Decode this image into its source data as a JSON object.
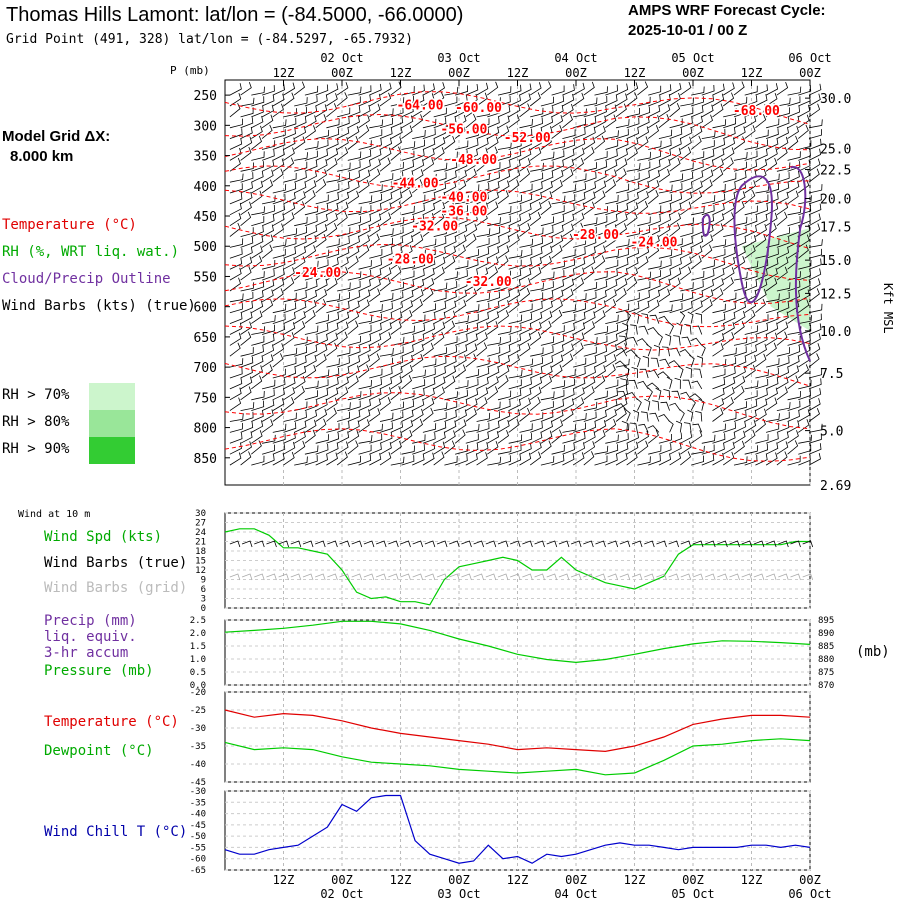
{
  "header": {
    "title": "Thomas Hills Lamont:  lat/lon = (-84.5000, -66.0000)",
    "grid_point": "Grid Point (491, 328) lat/lon = (-84.5297, -65.7932)",
    "cycle_line1": "AMPS WRF Forecast Cycle:",
    "cycle_line2": "2025-10-01 / 00  Z"
  },
  "side": {
    "model_grid_line1": "Model Grid ΔX:",
    "model_grid_line2": "8.000 km",
    "legend_temperature": "Temperature (°C)",
    "legend_rh": "RH (%, WRT liq. wat.)",
    "legend_cloud": "Cloud/Precip Outline",
    "legend_barbs": "Wind Barbs (kts) (true)",
    "rh_70": "RH > 70%",
    "rh_80": "RH > 80%",
    "rh_90": "RH > 90%"
  },
  "panel2_labels": {
    "wind_at_10m": "Wind at 10 m",
    "wind_spd": "Wind Spd (kts)",
    "wind_barbs_true": "Wind Barbs (true)",
    "wind_barbs_grid": "Wind Barbs (grid)"
  },
  "panel3_labels": {
    "precip": "Precip (mm)",
    "liq": "liq. equiv.",
    "accum": "3-hr accum",
    "pressure": "Pressure (mb)",
    "right_unit": "(mb)"
  },
  "panel4_labels": {
    "temperature": "Temperature (°C)",
    "dewpoint": "Dewpoint (°C)"
  },
  "panel5_labels": {
    "wind_chill": "Wind Chill T (°C)"
  },
  "colors": {
    "temperature": "#ff0000",
    "rh": "#00bb00",
    "cloud": "#7030a0",
    "wind_chill": "#0000cc",
    "rh70": "#ccf5cc",
    "rh80": "#99e699",
    "rh90": "#33cc33"
  },
  "chart_data": [
    {
      "type": "heatmap",
      "name": "time-height cross section",
      "y_axis_label": "P (mb)",
      "y_right_label": "Kft MSL",
      "pressure_ticks": [
        "250",
        "300",
        "350",
        "400",
        "450",
        "500",
        "550",
        "600",
        "650",
        "700",
        "750",
        "800",
        "850"
      ],
      "height_ticks": [
        {
          "label": "30.0",
          "p": 255
        },
        {
          "label": "25.0",
          "p": 338
        },
        {
          "label": "22.5",
          "p": 373
        },
        {
          "label": "20.0",
          "p": 421
        },
        {
          "label": "17.5",
          "p": 467
        },
        {
          "label": "15.0",
          "p": 523
        },
        {
          "label": "12.5",
          "p": 578
        },
        {
          "label": "10.0",
          "p": 640
        },
        {
          "label": "7.5",
          "p": 710
        },
        {
          "label": "5.0",
          "p": 805
        },
        {
          "label": "2.69",
          "p": 895
        }
      ],
      "time_top": [
        {
          "hour": 12,
          "l1": "",
          "l2": "12Z"
        },
        {
          "hour": 24,
          "l1": "02 Oct",
          "l2": "00Z"
        },
        {
          "hour": 36,
          "l1": "",
          "l2": "12Z"
        },
        {
          "hour": 48,
          "l1": "03 Oct",
          "l2": "00Z"
        },
        {
          "hour": 60,
          "l1": "",
          "l2": "12Z"
        },
        {
          "hour": 72,
          "l1": "04 Oct",
          "l2": "00Z"
        },
        {
          "hour": 84,
          "l1": "",
          "l2": "12Z"
        },
        {
          "hour": 96,
          "l1": "05 Oct",
          "l2": "00Z"
        },
        {
          "hour": 108,
          "l1": "",
          "l2": "12Z"
        },
        {
          "hour": 120,
          "l1": "06 Oct",
          "l2": "00Z"
        }
      ],
      "temperature_labels": [
        {
          "label": "-64.00",
          "hour": 40,
          "p": 268
        },
        {
          "label": "-60.00",
          "hour": 52,
          "p": 272
        },
        {
          "label": "-68.00",
          "hour": 109,
          "p": 277
        },
        {
          "label": "-56.00",
          "hour": 49,
          "p": 308
        },
        {
          "label": "-52.00",
          "hour": 62,
          "p": 322
        },
        {
          "label": "-48.00",
          "hour": 51,
          "p": 358
        },
        {
          "label": "-44.00",
          "hour": 39,
          "p": 397
        },
        {
          "label": "-40.00",
          "hour": 49,
          "p": 420
        },
        {
          "label": "-36.00",
          "hour": 49,
          "p": 443
        },
        {
          "label": "-32.00",
          "hour": 43,
          "p": 468
        },
        {
          "label": "-28.00",
          "hour": 76,
          "p": 482
        },
        {
          "label": "-24.00",
          "hour": 88,
          "p": 495
        },
        {
          "label": "-28.00",
          "hour": 38,
          "p": 523
        },
        {
          "label": "-24.00",
          "hour": 19,
          "p": 545
        },
        {
          "label": "-32.00",
          "hour": 54,
          "p": 560
        }
      ]
    },
    {
      "type": "line",
      "name": "Wind Spd (kts)",
      "y_ticks": [
        "30",
        "27",
        "24",
        "21",
        "18",
        "15",
        "12",
        "9",
        "6",
        "3",
        "0"
      ],
      "ylim": [
        0,
        30
      ],
      "x_hours": [
        0,
        3,
        6,
        9,
        12,
        15,
        18,
        21,
        24,
        27,
        30,
        33,
        36,
        39,
        42,
        45,
        48,
        51,
        54,
        57,
        60,
        63,
        66,
        69,
        72,
        75,
        78,
        81,
        84,
        87,
        90,
        93,
        96,
        99,
        102,
        105,
        108,
        111,
        114,
        117,
        120
      ],
      "values": [
        24,
        25,
        25,
        23,
        19,
        19,
        18,
        17,
        12,
        5,
        3,
        3.5,
        2,
        2,
        1,
        9,
        13,
        14,
        15,
        16,
        15,
        12,
        12,
        16,
        12,
        10,
        8,
        7,
        6,
        8,
        10,
        17,
        20,
        20,
        20,
        20,
        20,
        20,
        20,
        21,
        21
      ]
    },
    {
      "type": "line",
      "name": "Pressure (mb)",
      "y_ticks_left": [
        "2.5",
        "2.0",
        "1.5",
        "1.0",
        "0.5",
        "0.0"
      ],
      "y_ticks_right": [
        "895",
        "890",
        "885",
        "880",
        "875",
        "870"
      ],
      "ylim_right": [
        870,
        895
      ],
      "x_hours": [
        0,
        6,
        12,
        18,
        24,
        30,
        36,
        42,
        48,
        54,
        60,
        66,
        72,
        78,
        84,
        90,
        96,
        102,
        108,
        114,
        120
      ],
      "values": [
        890.3,
        891,
        891.8,
        893,
        894.5,
        894.5,
        893.5,
        891,
        887.7,
        885,
        881.8,
        879.8,
        878.7,
        879.8,
        881.8,
        884,
        885.8,
        887,
        886.8,
        886.3,
        885.6
      ]
    },
    {
      "type": "line",
      "name": "Temperature / Dewpoint (°C)",
      "y_ticks": [
        "-20",
        "-25",
        "-30",
        "-35",
        "-40",
        "-45"
      ],
      "ylim": [
        -45,
        -20
      ],
      "x_hours": [
        0,
        6,
        12,
        18,
        24,
        30,
        36,
        42,
        48,
        54,
        60,
        66,
        72,
        78,
        84,
        90,
        96,
        102,
        108,
        114,
        120
      ],
      "series": [
        {
          "name": "Temperature",
          "values": [
            -25,
            -27,
            -26,
            -26.5,
            -28,
            -30,
            -31.5,
            -32.5,
            -33.5,
            -34.5,
            -36,
            -35.5,
            -36,
            -36.5,
            -35,
            -32.5,
            -29,
            -27.5,
            -26.5,
            -26.5,
            -27
          ]
        },
        {
          "name": "Dewpoint",
          "values": [
            -34,
            -36,
            -35.5,
            -36,
            -38,
            -39.5,
            -40,
            -40.5,
            -41.5,
            -42,
            -42.5,
            -42,
            -41.5,
            -43,
            -42.5,
            -39,
            -35,
            -34.5,
            -33.5,
            -33,
            -33.5
          ]
        }
      ]
    },
    {
      "type": "line",
      "name": "Wind Chill T (°C)",
      "y_ticks": [
        "-30",
        "-35",
        "-40",
        "-45",
        "-50",
        "-55",
        "-60",
        "-65"
      ],
      "ylim": [
        -65,
        -30
      ],
      "x_hours": [
        0,
        3,
        6,
        9,
        12,
        15,
        18,
        21,
        24,
        27,
        30,
        33,
        36,
        39,
        42,
        45,
        48,
        51,
        54,
        57,
        60,
        63,
        66,
        69,
        72,
        75,
        78,
        81,
        84,
        87,
        90,
        93,
        96,
        99,
        102,
        105,
        108,
        111,
        114,
        117,
        120
      ],
      "values": [
        -56,
        -58,
        -58,
        -56,
        -55,
        -54,
        -50,
        -46,
        -36,
        -39,
        -33,
        -32,
        -32,
        -52,
        -58,
        -60,
        -62,
        -61,
        -54,
        -60,
        -59,
        -62,
        -58,
        -59,
        -58,
        -56,
        -54,
        -53,
        -54,
        -54,
        -55,
        -56,
        -55,
        -55,
        -55,
        -55,
        -54,
        -54,
        -55,
        -54,
        -55
      ]
    }
  ],
  "bottom_axis": [
    {
      "hour": 12,
      "l1": "12Z",
      "l2": ""
    },
    {
      "hour": 24,
      "l1": "00Z",
      "l2": "02 Oct"
    },
    {
      "hour": 36,
      "l1": "12Z",
      "l2": ""
    },
    {
      "hour": 48,
      "l1": "00Z",
      "l2": "03 Oct"
    },
    {
      "hour": 60,
      "l1": "12Z",
      "l2": ""
    },
    {
      "hour": 72,
      "l1": "00Z",
      "l2": "04 Oct"
    },
    {
      "hour": 84,
      "l1": "12Z",
      "l2": ""
    },
    {
      "hour": 96,
      "l1": "00Z",
      "l2": "05 Oct"
    },
    {
      "hour": 108,
      "l1": "12Z",
      "l2": ""
    },
    {
      "hour": 120,
      "l1": "00Z",
      "l2": "06 Oct"
    }
  ]
}
